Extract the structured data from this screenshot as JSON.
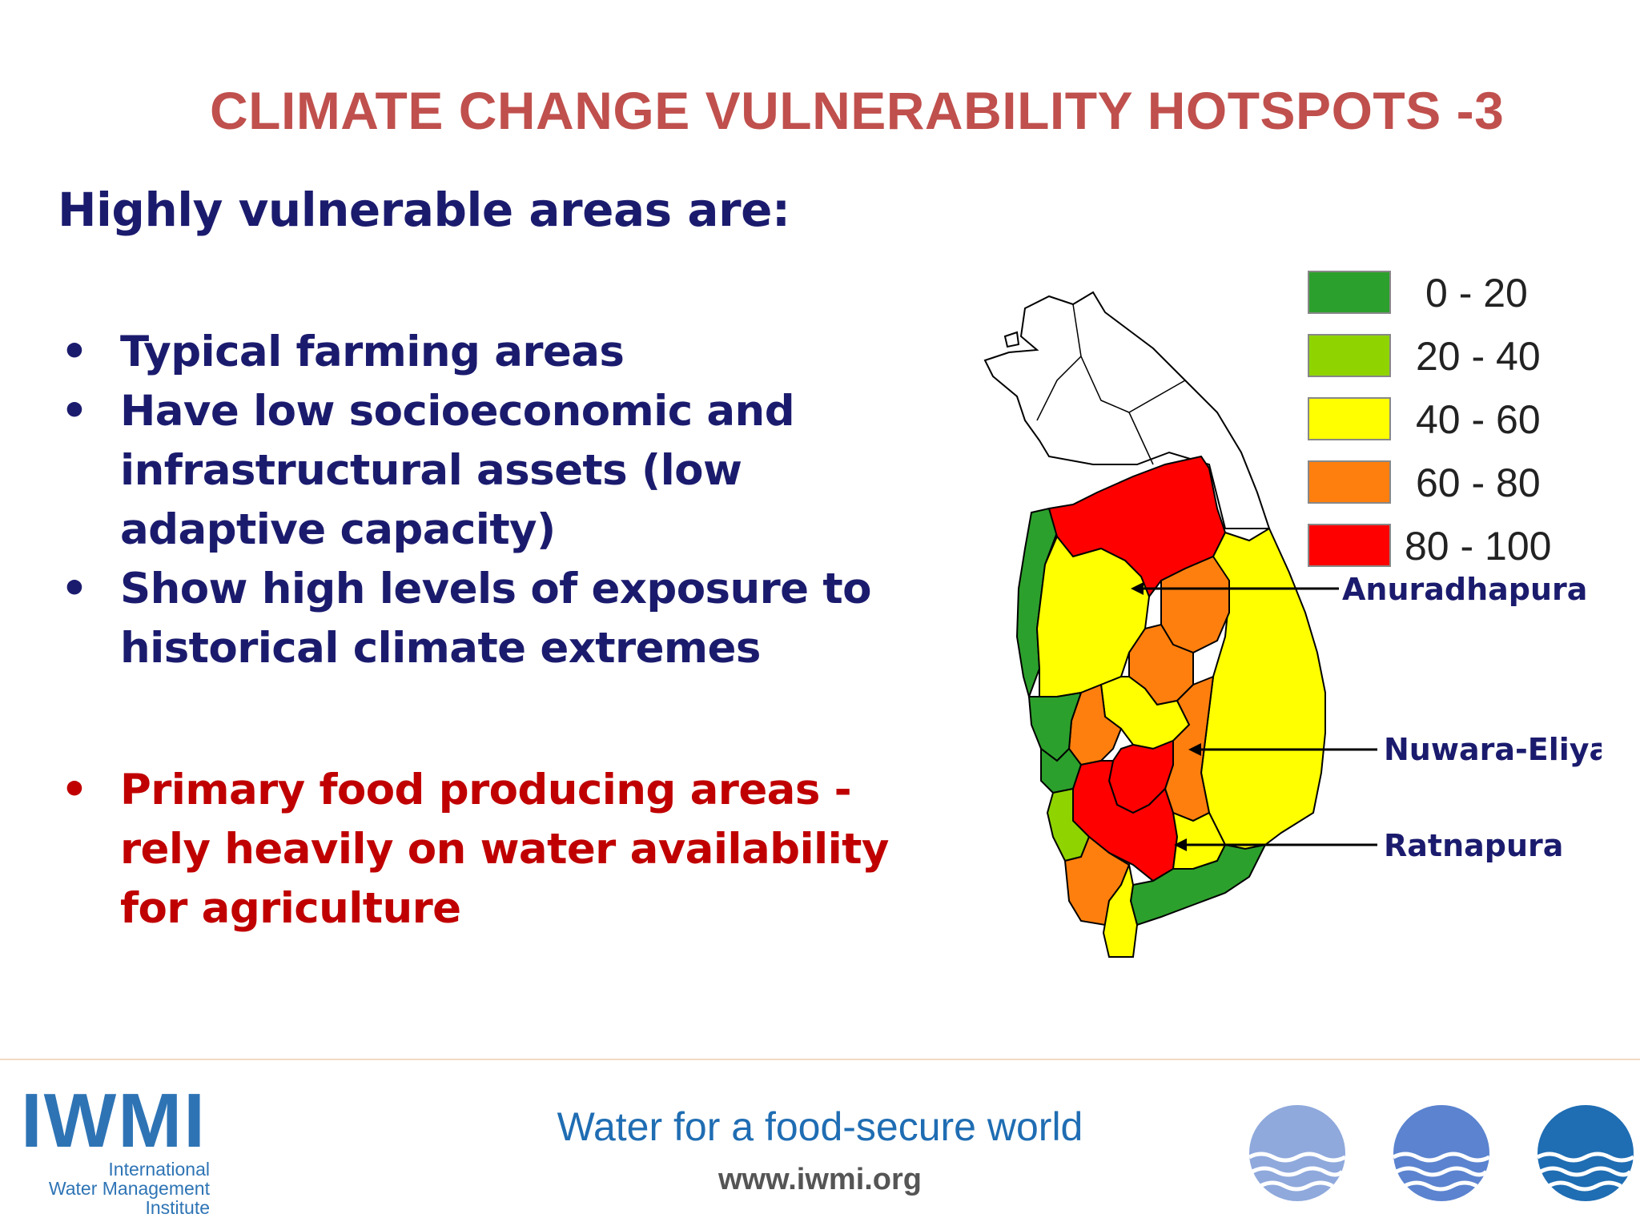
{
  "slide": {
    "title": "CLIMATE CHANGE VULNERABILITY HOTSPOTS -3",
    "subtitle": "Highly vulnerable areas are:",
    "bullets": [
      "Typical farming areas",
      "Have low socioeconomic and infrastructural assets (low adaptive capacity)",
      "Show high levels of exposure to historical climate extremes",
      "Primary food producing areas - rely heavily on water availability for agriculture"
    ],
    "bullet_char": "•"
  },
  "map": {
    "legend": [
      {
        "range": "0 - 20",
        "color": "#2ca02c"
      },
      {
        "range": "20 - 40",
        "color": "#8fd400"
      },
      {
        "range": "40 - 60",
        "color": "#ffff00"
      },
      {
        "range": "60 - 80",
        "color": "#ff7f0e"
      },
      {
        "range": "80 - 100",
        "color": "#ff0000"
      }
    ],
    "places": [
      "Anuradhapura",
      "Nuwara-Eliya",
      "Ratnapura"
    ]
  },
  "footer": {
    "tagline": "Water for a food-secure world",
    "url": "www.iwmi.org",
    "logo_text": "IWMI",
    "logo_sub": [
      "International",
      "Water Management",
      "Institute"
    ]
  }
}
